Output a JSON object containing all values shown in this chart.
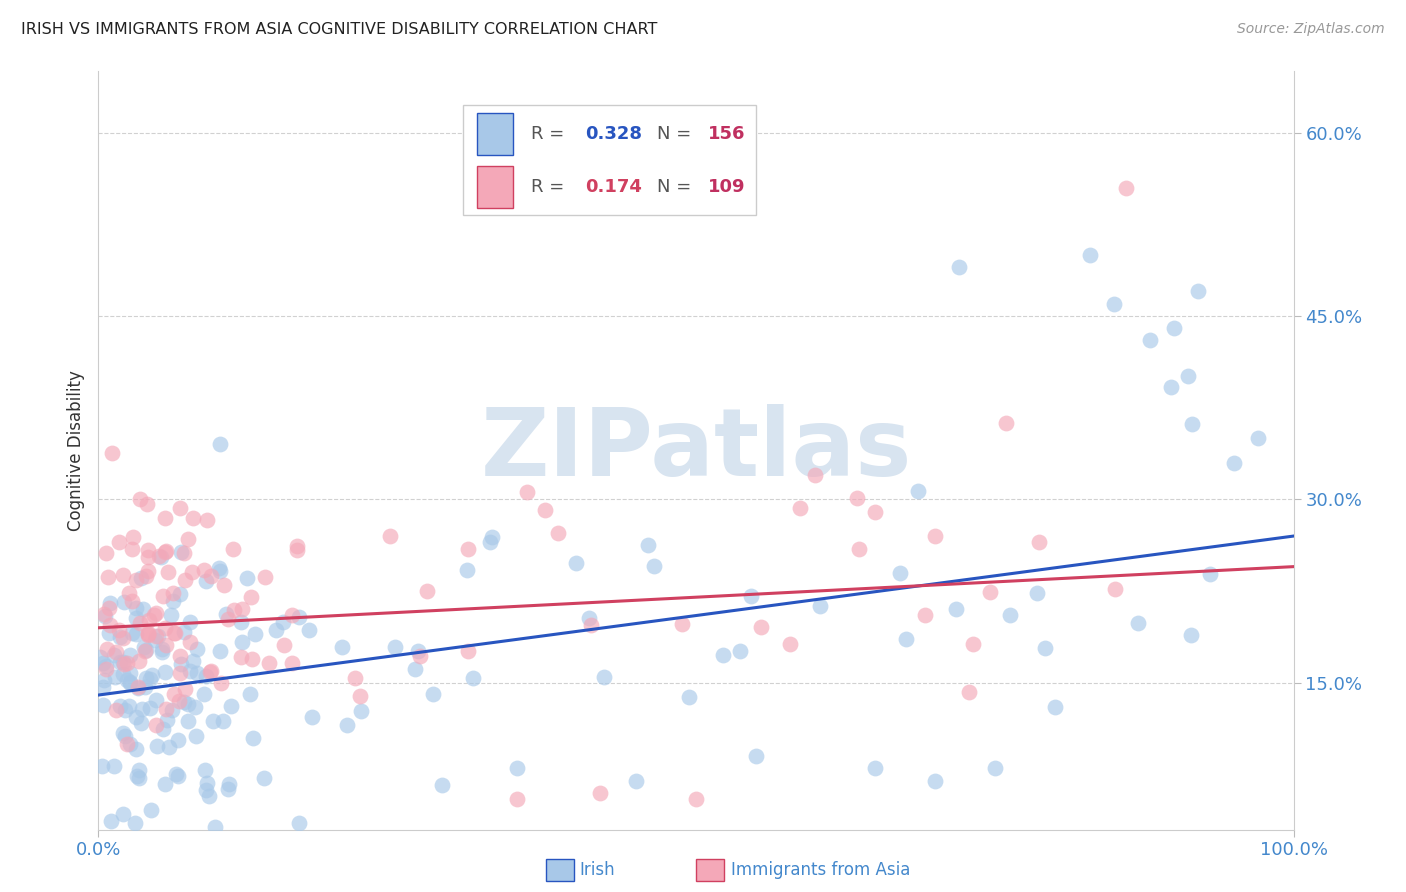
{
  "title": "IRISH VS IMMIGRANTS FROM ASIA COGNITIVE DISABILITY CORRELATION CHART",
  "source": "Source: ZipAtlas.com",
  "ylabel": "Cognitive Disability",
  "xlim": [
    0,
    1
  ],
  "ylim": [
    0.03,
    0.65
  ],
  "yticks": [
    0.15,
    0.3,
    0.45,
    0.6
  ],
  "ytick_labels": [
    "15.0%",
    "30.0%",
    "45.0%",
    "60.0%"
  ],
  "irish_R": 0.328,
  "irish_N": 156,
  "asia_R": 0.174,
  "asia_N": 109,
  "irish_color": "#a8c8e8",
  "asia_color": "#f4a8b8",
  "irish_line_color": "#2855c0",
  "asia_line_color": "#d04060",
  "background_color": "#ffffff",
  "grid_color": "#cccccc",
  "title_color": "#222222",
  "axis_label_color": "#333333",
  "tick_color": "#4488cc",
  "watermark_color": "#d8e4f0",
  "legend_R_color": "#2855c0",
  "legend_N_color": "#c03060",
  "irish_line_y0": 0.14,
  "irish_line_y1": 0.27,
  "asia_line_y0": 0.195,
  "asia_line_y1": 0.245
}
